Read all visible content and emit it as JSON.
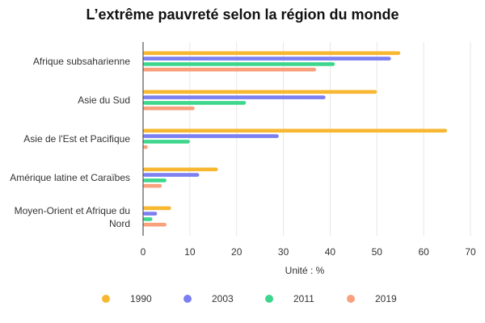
{
  "chart_data": {
    "type": "bar",
    "orientation": "horizontal",
    "title": "L’extrême pauvreté selon la région du monde",
    "xlabel": "Unité : %",
    "ylabel": "",
    "categories": [
      "Afrique subsaharienne",
      "Asie du Sud",
      "Asie de l'Est et Pacifique",
      "Amérique latine et Caraïbes",
      "Moyen-Orient et Afrique du Nord"
    ],
    "series": [
      {
        "name": "1990",
        "color": "#f7b731",
        "values": [
          55,
          50,
          65,
          16,
          6
        ]
      },
      {
        "name": "2003",
        "color": "#7b7ff0",
        "values": [
          53,
          39,
          29,
          12,
          3
        ]
      },
      {
        "name": "2011",
        "color": "#3dd68c",
        "values": [
          41,
          22,
          10,
          5,
          2
        ]
      },
      {
        "name": "2019",
        "color": "#f9a07c",
        "values": [
          37,
          11,
          1,
          4,
          5
        ]
      }
    ],
    "xlim": [
      0,
      70
    ],
    "xticks": [
      0,
      10,
      20,
      30,
      40,
      50,
      60,
      70
    ],
    "grid": true,
    "legend_position": "bottom"
  }
}
